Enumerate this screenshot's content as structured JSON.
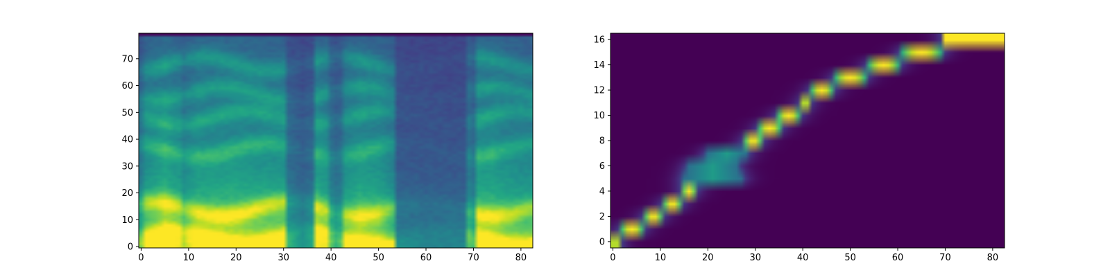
{
  "chart_data": [
    {
      "type": "heatmap",
      "title": "",
      "xlabel": "",
      "ylabel": "",
      "xlim": [
        -0.5,
        82.5
      ],
      "ylim": [
        -0.5,
        79.5
      ],
      "x_ticks": [
        0,
        10,
        20,
        30,
        40,
        50,
        60,
        70,
        80
      ],
      "y_ticks": [
        0,
        10,
        20,
        30,
        40,
        50,
        60,
        70
      ],
      "x_tick_labels": [
        "0",
        "10",
        "20",
        "30",
        "40",
        "50",
        "60",
        "70",
        "80"
      ],
      "y_tick_labels": [
        "0",
        "10",
        "20",
        "30",
        "40",
        "50",
        "60",
        "70"
      ],
      "colormap": "viridis",
      "rows": 80,
      "cols": 83,
      "column_energy": [
        [
          0,
          0.5
        ],
        [
          1,
          0.75
        ],
        [
          5,
          0.95
        ],
        [
          8,
          0.8
        ],
        [
          9,
          0.65
        ],
        [
          12,
          0.85
        ],
        [
          20,
          0.88
        ],
        [
          30,
          0.8
        ],
        [
          31,
          0.35
        ],
        [
          34,
          0.2
        ],
        [
          36,
          0.3
        ],
        [
          37,
          0.85
        ],
        [
          39,
          0.75
        ],
        [
          40,
          0.45
        ],
        [
          41,
          0.35
        ],
        [
          42,
          0.4
        ],
        [
          43,
          0.7
        ],
        [
          46,
          0.85
        ],
        [
          50,
          0.8
        ],
        [
          53,
          0.6
        ],
        [
          54,
          0.15
        ],
        [
          60,
          0.12
        ],
        [
          68,
          0.12
        ],
        [
          69,
          0.45
        ],
        [
          70,
          0.4
        ],
        [
          71,
          0.85
        ],
        [
          74,
          0.85
        ],
        [
          78,
          0.75
        ],
        [
          82,
          0.7
        ]
      ],
      "band_centers": [
        3,
        14,
        36,
        48,
        57,
        68
      ]
    },
    {
      "type": "heatmap",
      "title": "",
      "xlabel": "",
      "ylabel": "",
      "xlim": [
        -0.5,
        82.5
      ],
      "ylim": [
        -0.5,
        16.5
      ],
      "x_ticks": [
        0,
        10,
        20,
        30,
        40,
        50,
        60,
        70,
        80
      ],
      "y_ticks": [
        0,
        2,
        4,
        6,
        8,
        10,
        12,
        14,
        16
      ],
      "x_tick_labels": [
        "0",
        "10",
        "20",
        "30",
        "40",
        "50",
        "60",
        "70",
        "80"
      ],
      "y_tick_labels": [
        "0",
        "2",
        "4",
        "6",
        "8",
        "10",
        "12",
        "14",
        "16"
      ],
      "colormap": "viridis",
      "rows": 17,
      "cols": 83,
      "alignment_path": [
        {
          "row": 0,
          "start": 0,
          "end": 2
        },
        {
          "row": 1,
          "start": 2,
          "end": 7
        },
        {
          "row": 2,
          "start": 7,
          "end": 11
        },
        {
          "row": 3,
          "start": 11,
          "end": 15
        },
        {
          "row": 4,
          "start": 15,
          "end": 18
        },
        {
          "row": 5,
          "start": 15,
          "end": 28
        },
        {
          "row": 6,
          "start": 16,
          "end": 27
        },
        {
          "row": 7,
          "start": 20,
          "end": 29
        },
        {
          "row": 8,
          "start": 28,
          "end": 32
        },
        {
          "row": 9,
          "start": 31,
          "end": 36
        },
        {
          "row": 10,
          "start": 35,
          "end": 40
        },
        {
          "row": 11,
          "start": 40,
          "end": 42
        },
        {
          "row": 12,
          "start": 42,
          "end": 47
        },
        {
          "row": 13,
          "start": 47,
          "end": 54
        },
        {
          "row": 14,
          "start": 54,
          "end": 61
        },
        {
          "row": 15,
          "start": 61,
          "end": 70
        },
        {
          "row": 16,
          "start": 70,
          "end": 83
        }
      ]
    }
  ]
}
